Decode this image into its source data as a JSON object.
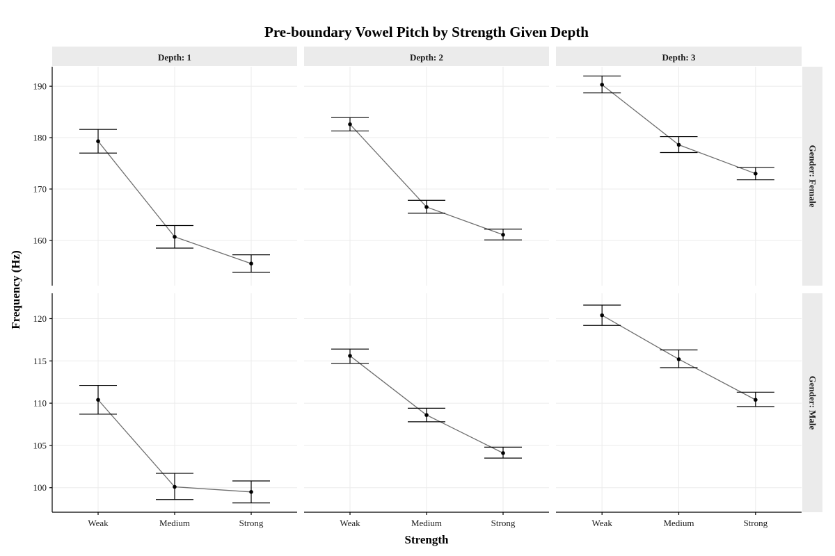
{
  "chart_data": {
    "type": "line",
    "title": "Pre-boundary Vowel Pitch by Strength Given Depth",
    "xlabel": "Strength",
    "ylabel": "Frequency (Hz)",
    "categories": [
      "Weak",
      "Medium",
      "Strong"
    ],
    "column_facets": [
      "Depth: 1",
      "Depth: 2",
      "Depth: 3"
    ],
    "row_facets": [
      "Gender: Female",
      "Gender: Male"
    ],
    "rows": [
      {
        "ylim": [
          151.2,
          193.8
        ],
        "yticks": [
          160,
          170,
          180,
          190
        ],
        "tick_labels": [
          "160",
          "170",
          "180",
          "190"
        ],
        "panels": [
          {
            "depth": "Depth: 1",
            "values": [
              179.3,
              160.7,
              155.5
            ],
            "lower": [
              177.0,
              158.5,
              153.8
            ],
            "upper": [
              181.6,
              162.9,
              157.2
            ]
          },
          {
            "depth": "Depth: 2",
            "values": [
              182.6,
              166.5,
              161.1
            ],
            "lower": [
              181.3,
              165.3,
              160.1
            ],
            "upper": [
              183.9,
              167.8,
              162.2
            ]
          },
          {
            "depth": "Depth: 3",
            "values": [
              190.3,
              178.6,
              173.0
            ],
            "lower": [
              188.7,
              177.1,
              171.8
            ],
            "upper": [
              192.0,
              180.2,
              174.2
            ]
          }
        ]
      },
      {
        "ylim": [
          97.1,
          123.0
        ],
        "yticks": [
          100,
          105,
          110,
          115,
          120
        ],
        "tick_labels": [
          "100",
          "105",
          "110",
          "115",
          "120"
        ],
        "panels": [
          {
            "depth": "Depth: 1",
            "values": [
              110.4,
              100.1,
              99.5
            ],
            "lower": [
              108.7,
              98.6,
              98.2
            ],
            "upper": [
              112.1,
              101.7,
              100.8
            ]
          },
          {
            "depth": "Depth: 2",
            "values": [
              115.6,
              108.6,
              104.1
            ],
            "lower": [
              114.7,
              107.8,
              103.5
            ],
            "upper": [
              116.4,
              109.4,
              104.8
            ]
          },
          {
            "depth": "Depth: 3",
            "values": [
              120.4,
              115.2,
              110.4
            ],
            "lower": [
              119.2,
              114.2,
              109.6
            ],
            "upper": [
              121.6,
              116.3,
              111.3
            ]
          }
        ]
      }
    ],
    "grid": true,
    "legend": "none"
  }
}
